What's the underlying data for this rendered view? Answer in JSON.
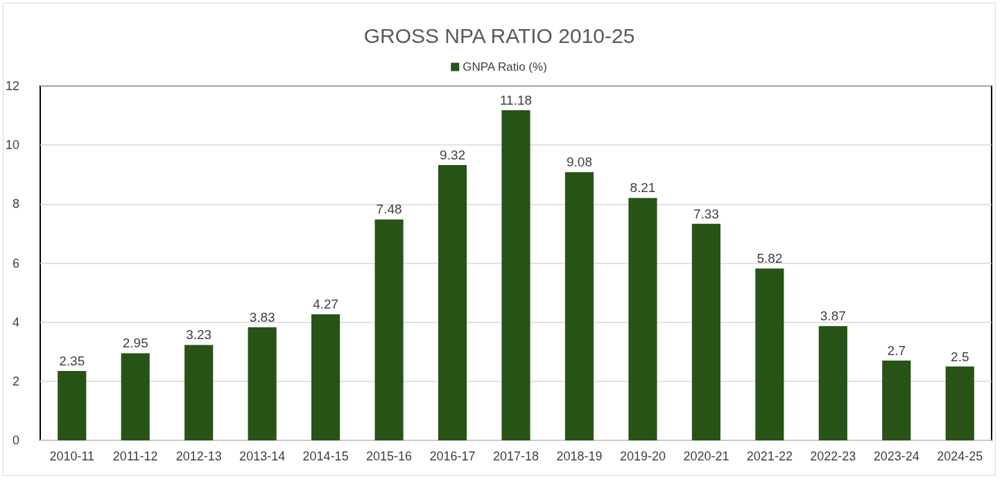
{
  "chart_data": {
    "type": "bar",
    "title": "GROSS NPA RATIO 2010-25",
    "categories": [
      "2010-11",
      "2011-12",
      "2012-13",
      "2013-14",
      "2014-15",
      "2015-16",
      "2016-17",
      "2017-18",
      "2018-19",
      "2019-20",
      "2020-21",
      "2021-22",
      "2022-23",
      "2023-24",
      "2024-25"
    ],
    "series": [
      {
        "name": "GNPA Ratio (%)",
        "color": "#275317",
        "values": [
          2.35,
          2.95,
          3.23,
          3.83,
          4.27,
          7.48,
          9.32,
          11.18,
          9.08,
          8.21,
          7.33,
          5.82,
          3.87,
          2.7,
          2.5
        ]
      }
    ],
    "ylim": [
      0,
      12
    ],
    "yticks": [
      0,
      2,
      4,
      6,
      8,
      10,
      12
    ],
    "grid": "y",
    "legend": "top",
    "data_labels": true
  }
}
